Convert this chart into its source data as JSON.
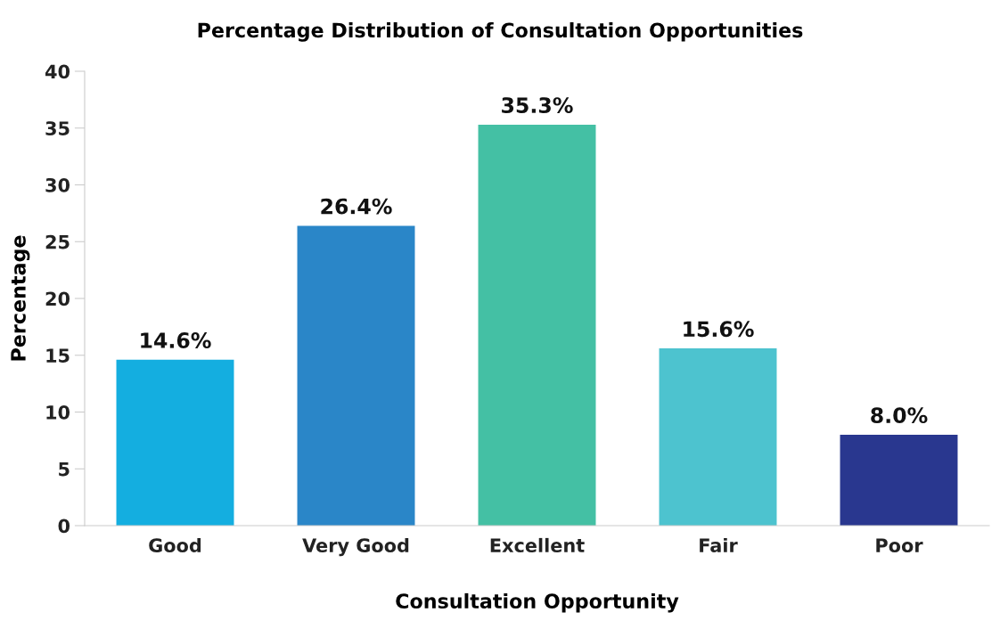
{
  "chart_data": {
    "type": "bar",
    "title": "Percentage Distribution of Consultation Opportunities",
    "xlabel": "Consultation Opportunity",
    "ylabel": "Percentage",
    "categories": [
      "Good",
      "Very Good",
      "Excellent",
      "Fair",
      "Poor"
    ],
    "values": [
      14.6,
      26.4,
      35.3,
      15.6,
      8.0
    ],
    "colors": [
      "#14aee0",
      "#2a86c8",
      "#44c0a4",
      "#4dc3cf",
      "#29378f"
    ],
    "value_labels": [
      "14.6%",
      "26.4%",
      "35.3%",
      "15.6%",
      "8.0%"
    ],
    "ylim": [
      0,
      40
    ],
    "yticks": [
      0,
      5,
      10,
      15,
      20,
      25,
      30,
      35,
      40
    ],
    "grid": false,
    "legend": false
  }
}
